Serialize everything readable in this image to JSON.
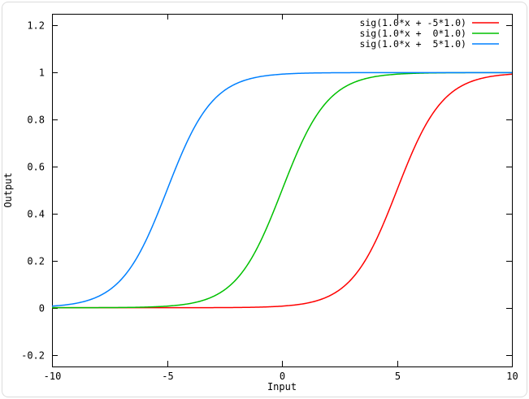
{
  "window": {
    "background": "#ffffff",
    "border_color": "#dcdcdc"
  },
  "chart_data": {
    "type": "line",
    "title": "",
    "xlabel": "Input",
    "ylabel": "Output",
    "xlim": [
      -10,
      10
    ],
    "ylim": [
      -0.25,
      1.25
    ],
    "grid": false,
    "legend_position": "top-right-inside",
    "axis_color": "#000000",
    "text_color": "#000000",
    "x_ticks": [
      {
        "value": -10,
        "label": "-10"
      },
      {
        "value": -5,
        "label": "-5"
      },
      {
        "value": 0,
        "label": "0"
      },
      {
        "value": 5,
        "label": "5"
      },
      {
        "value": 10,
        "label": "10"
      }
    ],
    "y_ticks": [
      {
        "value": -0.2,
        "label": "-0.2"
      },
      {
        "value": 0,
        "label": "0"
      },
      {
        "value": 0.2,
        "label": "0.2"
      },
      {
        "value": 0.4,
        "label": "0.4"
      },
      {
        "value": 0.6,
        "label": "0.6"
      },
      {
        "value": 0.8,
        "label": "0.8"
      },
      {
        "value": 1,
        "label": "1"
      },
      {
        "value": 1.2,
        "label": "1.2"
      }
    ],
    "series": [
      {
        "name": "sig(1.0*x + -5*1.0)",
        "color": "#ff0000",
        "function": "sigmoid(a*x + b)",
        "a": 1.0,
        "b": -5.0,
        "x": [
          -10,
          -9,
          -8,
          -7,
          -6,
          -5,
          -4,
          -3,
          -2,
          -1,
          0,
          1,
          2,
          3,
          4,
          5,
          6,
          7,
          8,
          9,
          10
        ],
        "y": [
          0.0,
          0.0,
          0.0,
          0.0,
          0.0,
          0.0,
          0.0001,
          0.0003,
          0.0009,
          0.0025,
          0.0067,
          0.018,
          0.0474,
          0.1192,
          0.2689,
          0.5,
          0.7311,
          0.8808,
          0.9526,
          0.982,
          0.9933
        ]
      },
      {
        "name": "sig(1.0*x +  0*1.0)",
        "color": "#00c000",
        "function": "sigmoid(a*x + b)",
        "a": 1.0,
        "b": 0.0,
        "x": [
          -10,
          -9,
          -8,
          -7,
          -6,
          -5,
          -4,
          -3,
          -2,
          -1,
          0,
          1,
          2,
          3,
          4,
          5,
          6,
          7,
          8,
          9,
          10
        ],
        "y": [
          0.0,
          0.0001,
          0.0003,
          0.0009,
          0.0025,
          0.0067,
          0.018,
          0.0474,
          0.1192,
          0.2689,
          0.5,
          0.7311,
          0.8808,
          0.9526,
          0.982,
          0.9933,
          0.9975,
          0.9991,
          0.9997,
          0.9999,
          1.0
        ]
      },
      {
        "name": "sig(1.0*x +  5*1.0)",
        "color": "#0080ff",
        "function": "sigmoid(a*x + b)",
        "a": 1.0,
        "b": 5.0,
        "x": [
          -10,
          -9,
          -8,
          -7,
          -6,
          -5,
          -4,
          -3,
          -2,
          -1,
          0,
          1,
          2,
          3,
          4,
          5,
          6,
          7,
          8,
          9,
          10
        ],
        "y": [
          0.0067,
          0.018,
          0.0474,
          0.1192,
          0.2689,
          0.5,
          0.7311,
          0.8808,
          0.9526,
          0.982,
          0.9933,
          0.9975,
          0.9991,
          0.9997,
          0.9999,
          1.0,
          1.0,
          1.0,
          1.0,
          1.0,
          1.0
        ]
      }
    ]
  }
}
